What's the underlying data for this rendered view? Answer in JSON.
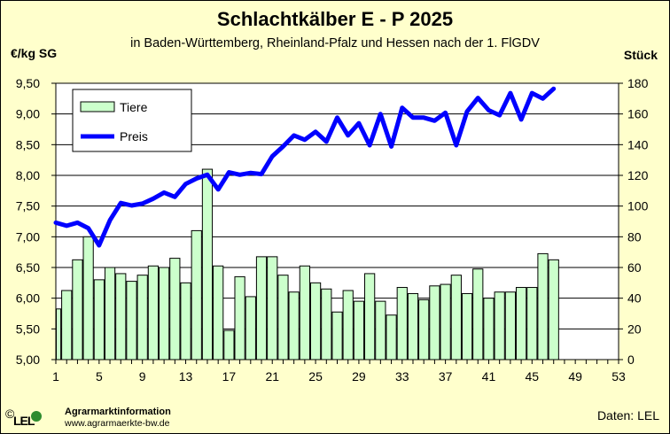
{
  "chart_data": {
    "type": "bar+line",
    "title": "Schlachtkälber E - P 2025",
    "subtitle": "in Baden-Württemberg, Rheinland-Pfalz  und Hessen  nach der 1. FlGDV",
    "ylabel_left": "€/kg SG",
    "ylabel_right": "Stück",
    "x_ticks": [
      "1",
      "5",
      "9",
      "13",
      "17",
      "21",
      "25",
      "29",
      "33",
      "37",
      "41",
      "45",
      "49",
      "53"
    ],
    "x_range": [
      1,
      53
    ],
    "y_left_ticks": [
      "5,00",
      "5,50",
      "6,00",
      "6,50",
      "7,00",
      "7,50",
      "8,00",
      "8,50",
      "9,00",
      "9,50"
    ],
    "y_left_range": [
      5.0,
      9.5
    ],
    "y_right_ticks": [
      "0",
      "20",
      "40",
      "60",
      "80",
      "100",
      "120",
      "140",
      "160",
      "180"
    ],
    "y_right_range": [
      0,
      180
    ],
    "legend": [
      "Tiere",
      "Preis"
    ],
    "legend_position": "top-left",
    "colors": {
      "bars": "#CCFFCC",
      "line": "#0000FF",
      "plot_bg": "#FFFFFF",
      "frame_bg": "#FFFFCC"
    },
    "series": [
      {
        "name": "Tiere",
        "axis": "right",
        "kind": "bar",
        "x": [
          1,
          2,
          3,
          4,
          5,
          6,
          7,
          8,
          9,
          10,
          11,
          12,
          13,
          14,
          15,
          16,
          17,
          18,
          19,
          20,
          21,
          22,
          23,
          24,
          25,
          26,
          27,
          28,
          29,
          30,
          31,
          32,
          33,
          34,
          35,
          36,
          37,
          38,
          39,
          40,
          41,
          42,
          43,
          44,
          45,
          46,
          47
        ],
        "values": [
          33,
          45,
          65,
          80,
          52,
          60,
          56,
          51,
          55,
          61,
          60,
          66,
          50,
          84,
          124,
          61,
          19,
          54,
          41,
          67,
          67,
          55,
          44,
          61,
          50,
          46,
          31,
          45,
          38,
          56,
          38,
          29,
          47,
          43,
          39,
          48,
          49,
          55,
          43,
          59,
          40,
          44,
          44,
          47,
          47,
          69,
          65
        ]
      },
      {
        "name": "Preis",
        "axis": "left",
        "kind": "line",
        "x": [
          1,
          2,
          3,
          4,
          5,
          6,
          7,
          8,
          9,
          10,
          11,
          12,
          13,
          14,
          15,
          16,
          17,
          18,
          19,
          20,
          21,
          22,
          23,
          24,
          25,
          26,
          27,
          28,
          29,
          30,
          31,
          32,
          33,
          34,
          35,
          36,
          37,
          38,
          39,
          40,
          41,
          42,
          43,
          44,
          45,
          46,
          47
        ],
        "values": [
          7.23,
          7.18,
          7.23,
          7.14,
          6.86,
          7.27,
          7.55,
          7.51,
          7.54,
          7.62,
          7.72,
          7.65,
          7.86,
          7.95,
          8.01,
          7.77,
          8.05,
          8.01,
          8.04,
          8.02,
          8.31,
          8.47,
          8.65,
          8.58,
          8.71,
          8.55,
          8.94,
          8.65,
          8.85,
          8.49,
          9.0,
          8.47,
          9.1,
          8.94,
          8.94,
          8.89,
          9.02,
          8.49,
          9.04,
          9.26,
          9.06,
          8.98,
          9.34,
          8.91,
          9.34,
          9.25,
          9.41
        ]
      }
    ]
  },
  "footer": {
    "logo_text": "LEL",
    "copyright": "©",
    "org_name": "Agrarmarktinformation",
    "org_url": "www.agrarmaerkte-bw.de",
    "source": "Daten: LEL"
  }
}
